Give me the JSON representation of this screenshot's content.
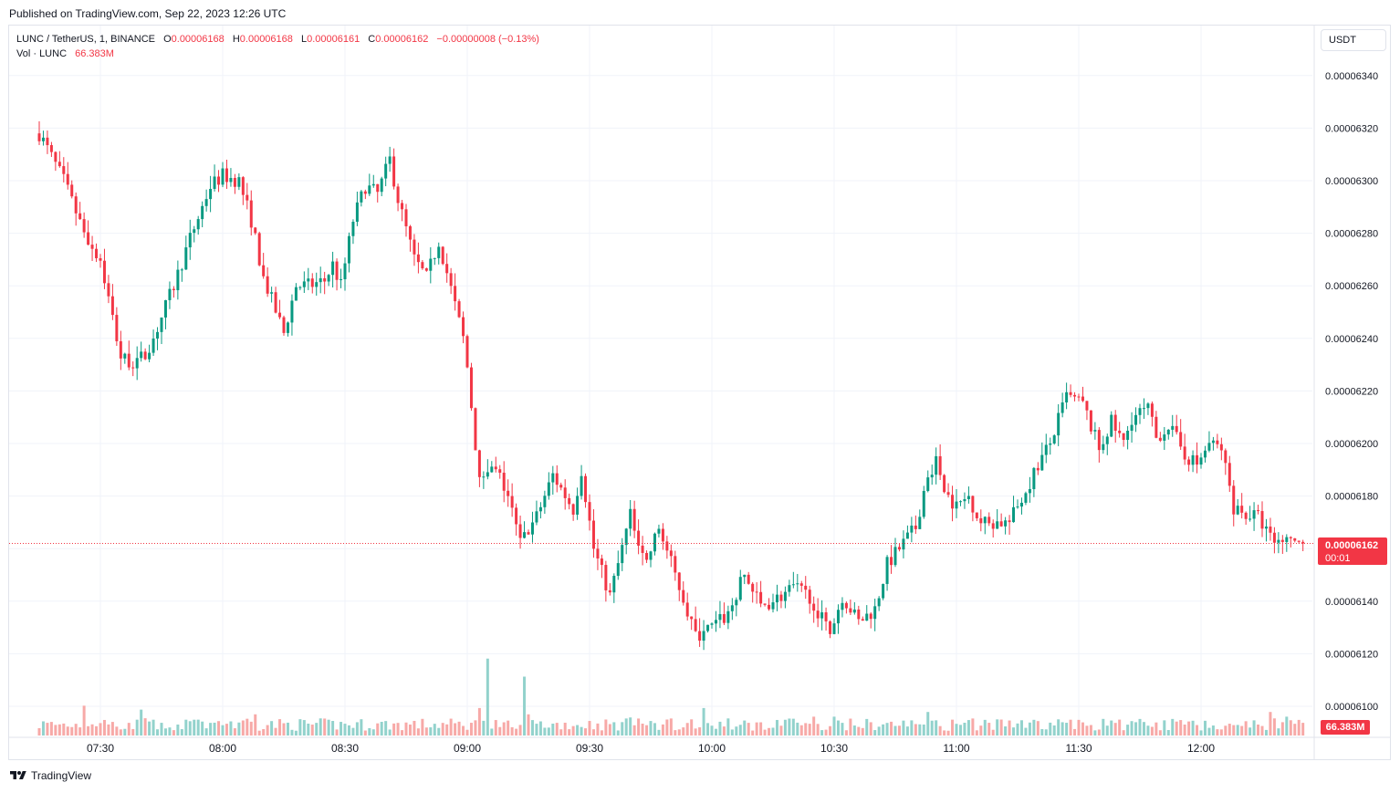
{
  "published": "Published on TradingView.com, Sep 22, 2023 12:26 UTC",
  "legend": {
    "symbol": "LUNC / TetherUS, 1, BINANCE",
    "o_label": "O",
    "o": "0.00006168",
    "h_label": "H",
    "h": "0.00006168",
    "l_label": "L",
    "l": "0.00006161",
    "c_label": "C",
    "c": "0.00006162",
    "change": "−0.00000008 (−0.13%)",
    "vol_label": "Vol · LUNC",
    "vol": "66.383M"
  },
  "currency": "USDT",
  "last_price": "0.00006162",
  "countdown": "00:01",
  "vol_tag": "66.383M",
  "brand": "TradingView",
  "colors": {
    "up": "#089981",
    "down": "#f23645",
    "up_vol": "#92d2cc",
    "down_vol": "#f7a9a7",
    "grid": "#f0f3fa",
    "axis_text": "#131722"
  },
  "chart_data": {
    "type": "candlestick",
    "interval": "1m",
    "y_ticks": [
      "0.00006340",
      "0.00006320",
      "0.00006300",
      "0.00006280",
      "0.00006260",
      "0.00006240",
      "0.00006220",
      "0.00006200",
      "0.00006180",
      "0.00006160",
      "0.00006140",
      "0.00006120",
      "0.00006100"
    ],
    "x_ticks": [
      "07:30",
      "08:00",
      "08:30",
      "09:00",
      "09:30",
      "10:00",
      "10:30",
      "11:00",
      "11:30",
      "12:00"
    ],
    "ylim": [
      6.095e-05,
      6.345e-05
    ],
    "x_start": "07:15",
    "x_end": "12:25",
    "last_price": 6.162e-05,
    "anchors": [
      [
        "07:15",
        6.318e-05
      ],
      [
        "07:21",
        6.3e-05
      ],
      [
        "07:26",
        6.28e-05
      ],
      [
        "07:30",
        6.27e-05
      ],
      [
        "07:35",
        6.233e-05
      ],
      [
        "07:39",
        6.23e-05
      ],
      [
        "07:43",
        6.24e-05
      ],
      [
        "07:48",
        6.26e-05
      ],
      [
        "07:52",
        6.278e-05
      ],
      [
        "07:57",
        6.298e-05
      ],
      [
        "08:00",
        6.302e-05
      ],
      [
        "08:04",
        6.3e-05
      ],
      [
        "08:07",
        6.285e-05
      ],
      [
        "08:10",
        6.263e-05
      ],
      [
        "08:15",
        6.242e-05
      ],
      [
        "08:18",
        6.26e-05
      ],
      [
        "08:21",
        6.26e-05
      ],
      [
        "08:25",
        6.262e-05
      ],
      [
        "08:27",
        6.268e-05
      ],
      [
        "08:29",
        6.26e-05
      ],
      [
        "08:32",
        6.285e-05
      ],
      [
        "08:35",
        6.298e-05
      ],
      [
        "08:38",
        6.295e-05
      ],
      [
        "08:41",
        6.308e-05
      ],
      [
        "08:43",
        6.293e-05
      ],
      [
        "08:47",
        6.27e-05
      ],
      [
        "08:50",
        6.263e-05
      ],
      [
        "08:53",
        6.277e-05
      ],
      [
        "08:55",
        6.265e-05
      ],
      [
        "08:59",
        6.24e-05
      ],
      [
        "09:00",
        6.229e-05
      ],
      [
        "09:03",
        6.185e-05
      ],
      [
        "09:05",
        6.192e-05
      ],
      [
        "09:08",
        6.187e-05
      ],
      [
        "09:10",
        6.18e-05
      ],
      [
        "09:13",
        6.162e-05
      ],
      [
        "09:17",
        6.172e-05
      ],
      [
        "09:21",
        6.188e-05
      ],
      [
        "09:26",
        6.175e-05
      ],
      [
        "09:28",
        6.19e-05
      ],
      [
        "09:31",
        6.16e-05
      ],
      [
        "09:35",
        6.142e-05
      ],
      [
        "09:38",
        6.16e-05
      ],
      [
        "09:40",
        6.173e-05
      ],
      [
        "09:44",
        6.155e-05
      ],
      [
        "09:47",
        6.168e-05
      ],
      [
        "09:51",
        6.15e-05
      ],
      [
        "09:53",
        6.141e-05
      ],
      [
        "09:56",
        6.127e-05
      ],
      [
        "10:00",
        6.13e-05
      ],
      [
        "10:04",
        6.135e-05
      ],
      [
        "10:08",
        6.15e-05
      ],
      [
        "10:12",
        6.138e-05
      ],
      [
        "10:17",
        6.142e-05
      ],
      [
        "10:20",
        6.145e-05
      ],
      [
        "10:24",
        6.142e-05
      ],
      [
        "10:29",
        6.128e-05
      ],
      [
        "10:32",
        6.142e-05
      ],
      [
        "10:36",
        6.132e-05
      ],
      [
        "10:40",
        6.137e-05
      ],
      [
        "10:43",
        6.154e-05
      ],
      [
        "10:47",
        6.162e-05
      ],
      [
        "10:50",
        6.168e-05
      ],
      [
        "10:53",
        6.189e-05
      ],
      [
        "10:55",
        6.193e-05
      ],
      [
        "10:58",
        6.18e-05
      ],
      [
        "11:00",
        6.176e-05
      ],
      [
        "11:03",
        6.18e-05
      ],
      [
        "11:06",
        6.17e-05
      ],
      [
        "11:10",
        6.17e-05
      ],
      [
        "11:13",
        6.17e-05
      ],
      [
        "11:17",
        6.182e-05
      ],
      [
        "11:20",
        6.192e-05
      ],
      [
        "11:23",
        6.2e-05
      ],
      [
        "11:27",
        6.218e-05
      ],
      [
        "11:31",
        6.215e-05
      ],
      [
        "11:35",
        6.198e-05
      ],
      [
        "11:38",
        6.208e-05
      ],
      [
        "11:41",
        6.2e-05
      ],
      [
        "11:43",
        6.21e-05
      ],
      [
        "11:47",
        6.213e-05
      ],
      [
        "11:49",
        6.202e-05
      ],
      [
        "11:52",
        6.207e-05
      ],
      [
        "11:56",
        6.196e-05
      ],
      [
        "11:59",
        6.192e-05
      ],
      [
        "12:02",
        6.2e-05
      ],
      [
        "12:05",
        6.198e-05
      ],
      [
        "12:08",
        6.176e-05
      ],
      [
        "12:11",
        6.173e-05
      ],
      [
        "12:14",
        6.172e-05
      ],
      [
        "12:17",
        6.164e-05
      ],
      [
        "12:20",
        6.162e-05
      ],
      [
        "12:25",
        6.162e-05
      ]
    ],
    "volume_peaks": [
      [
        "09:05",
        0.98
      ],
      [
        "09:14",
        0.75
      ],
      [
        "09:03",
        0.35
      ],
      [
        "07:26",
        0.38
      ],
      [
        "07:40",
        0.33
      ],
      [
        "09:58",
        0.35
      ],
      [
        "10:25",
        0.24
      ],
      [
        "10:30",
        0.24
      ],
      [
        "10:53",
        0.3
      ],
      [
        "12:17",
        0.3
      ],
      [
        "12:21",
        0.24
      ],
      [
        "09:40",
        0.23
      ],
      [
        "07:41",
        0.22
      ],
      [
        "08:08",
        0.27
      ],
      [
        "09:15",
        0.27
      ]
    ]
  }
}
